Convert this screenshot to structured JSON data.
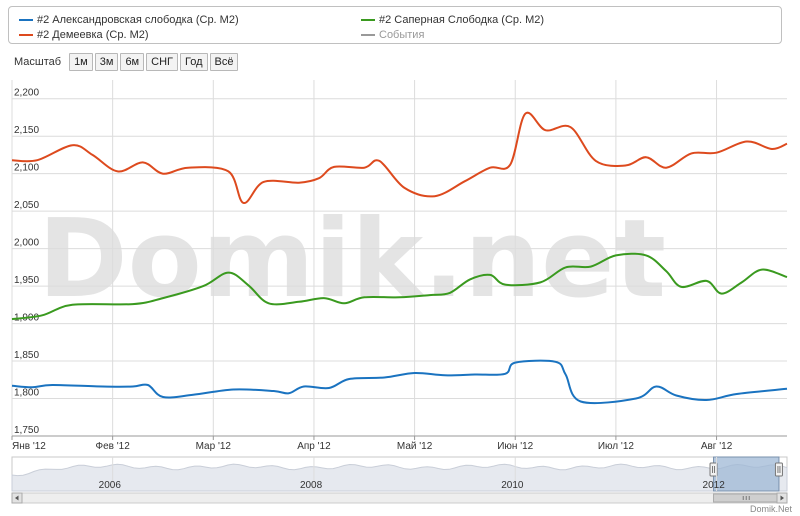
{
  "legend": {
    "series": [
      {
        "label": "#2 Александровская слободка (Ср. М2)",
        "color": "#1a73c0"
      },
      {
        "label": "#2 Демеевка (Ср. М2)",
        "color": "#dd4a1e"
      },
      {
        "label": "#2 Саперная Слободка (Ср. М2)",
        "color": "#3a9a1f"
      },
      {
        "label": "События",
        "color": "#999999"
      }
    ]
  },
  "toolbar": {
    "zoom_label": "Масштаб",
    "buttons": [
      "1м",
      "3м",
      "6м",
      "СНГ",
      "Год",
      "Всё"
    ]
  },
  "watermark": "Domik.net",
  "credit": "Domik.Net",
  "navigator": {
    "years": [
      "2006",
      "2008",
      "2010",
      "2012"
    ]
  },
  "chart_data": {
    "type": "line",
    "x_ticks": [
      "Янв '12",
      "Фев '12",
      "Мар '12",
      "Апр '12",
      "Май '12",
      "Июн '12",
      "Июл '12",
      "Авг '12"
    ],
    "y_ticks": [
      "1,750",
      "1,800",
      "1,850",
      "1,900",
      "1,950",
      "2,000",
      "2,050",
      "2,100",
      "2,150",
      "2,200"
    ],
    "ylim": [
      1750,
      2225
    ],
    "xlim": [
      0,
      7.7
    ],
    "grid": true,
    "series": [
      {
        "name": "#2 Александровская слободка (Ср. М2)",
        "color": "#1a73c0",
        "points": [
          [
            0,
            1817
          ],
          [
            0.2,
            1815
          ],
          [
            0.4,
            1818
          ],
          [
            0.9,
            1816
          ],
          [
            1.2,
            1816
          ],
          [
            1.35,
            1818
          ],
          [
            1.5,
            1802
          ],
          [
            1.8,
            1805
          ],
          [
            2.2,
            1812
          ],
          [
            2.6,
            1810
          ],
          [
            2.75,
            1807
          ],
          [
            2.9,
            1816
          ],
          [
            3.15,
            1814
          ],
          [
            3.35,
            1826
          ],
          [
            3.7,
            1828
          ],
          [
            4.0,
            1834
          ],
          [
            4.3,
            1831
          ],
          [
            4.6,
            1832
          ],
          [
            4.9,
            1833
          ],
          [
            5.0,
            1848
          ],
          [
            5.4,
            1849
          ],
          [
            5.5,
            1832
          ],
          [
            5.65,
            1796
          ],
          [
            6.2,
            1800
          ],
          [
            6.4,
            1816
          ],
          [
            6.6,
            1804
          ],
          [
            6.9,
            1798
          ],
          [
            7.2,
            1806
          ],
          [
            7.7,
            1813
          ]
        ]
      },
      {
        "name": "#2 Демеевка (Ср. М2)",
        "color": "#dd4a1e",
        "points": [
          [
            0,
            2118
          ],
          [
            0.25,
            2118
          ],
          [
            0.6,
            2138
          ],
          [
            0.8,
            2125
          ],
          [
            1.05,
            2103
          ],
          [
            1.3,
            2115
          ],
          [
            1.5,
            2100
          ],
          [
            1.75,
            2108
          ],
          [
            2.15,
            2103
          ],
          [
            2.3,
            2061
          ],
          [
            2.5,
            2089
          ],
          [
            2.85,
            2088
          ],
          [
            3.05,
            2094
          ],
          [
            3.2,
            2109
          ],
          [
            3.5,
            2108
          ],
          [
            3.65,
            2117
          ],
          [
            3.9,
            2081
          ],
          [
            4.2,
            2070
          ],
          [
            4.5,
            2090
          ],
          [
            4.75,
            2108
          ],
          [
            4.95,
            2112
          ],
          [
            5.1,
            2180
          ],
          [
            5.3,
            2158
          ],
          [
            5.55,
            2162
          ],
          [
            5.8,
            2117
          ],
          [
            6.1,
            2111
          ],
          [
            6.3,
            2122
          ],
          [
            6.5,
            2108
          ],
          [
            6.75,
            2127
          ],
          [
            7.0,
            2128
          ],
          [
            7.3,
            2143
          ],
          [
            7.55,
            2133
          ],
          [
            7.7,
            2140
          ]
        ]
      },
      {
        "name": "#2 Саперная Слободка (Ср. М2)",
        "color": "#3a9a1f",
        "points": [
          [
            0,
            1906
          ],
          [
            0.3,
            1911
          ],
          [
            0.6,
            1925
          ],
          [
            1.2,
            1926
          ],
          [
            1.5,
            1934
          ],
          [
            1.9,
            1950
          ],
          [
            2.15,
            1968
          ],
          [
            2.35,
            1951
          ],
          [
            2.55,
            1927
          ],
          [
            2.85,
            1929
          ],
          [
            3.1,
            1934
          ],
          [
            3.3,
            1927
          ],
          [
            3.5,
            1935
          ],
          [
            3.85,
            1935
          ],
          [
            4.15,
            1938
          ],
          [
            4.35,
            1941
          ],
          [
            4.55,
            1959
          ],
          [
            4.75,
            1965
          ],
          [
            4.9,
            1952
          ],
          [
            5.25,
            1955
          ],
          [
            5.5,
            1975
          ],
          [
            5.75,
            1976
          ],
          [
            6.0,
            1991
          ],
          [
            6.3,
            1991
          ],
          [
            6.5,
            1970
          ],
          [
            6.65,
            1949
          ],
          [
            6.9,
            1957
          ],
          [
            7.05,
            1940
          ],
          [
            7.25,
            1955
          ],
          [
            7.45,
            1972
          ],
          [
            7.7,
            1962
          ]
        ]
      }
    ],
    "navigator": {
      "range": [
        2005,
        2012.7
      ],
      "selected": [
        2011.97,
        2012.62
      ]
    }
  }
}
